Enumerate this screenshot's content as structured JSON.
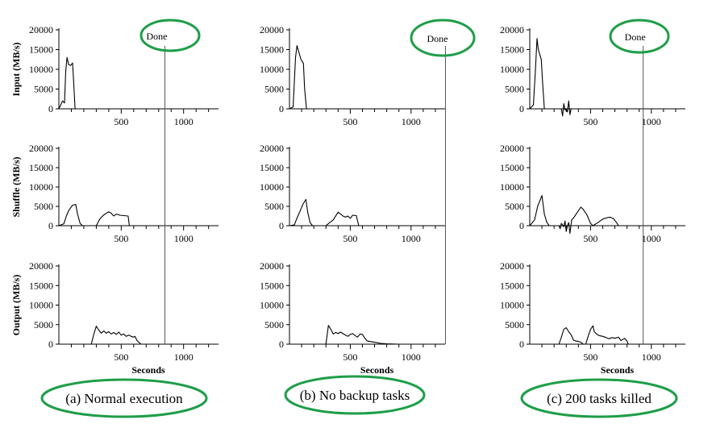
{
  "colors": {
    "highlight": "#1e9e48",
    "line": "#000000",
    "done_line": "#555555"
  },
  "y_ticks": [
    "0",
    "5000",
    "10000",
    "15000",
    "20000"
  ],
  "x_ticks": [
    "500",
    "1000"
  ],
  "row_labels": [
    "Input (MB/s)",
    "Shuffle (MB/s)",
    "Output (MB/s)"
  ],
  "xlabel": "Seconds",
  "done_label": "Done",
  "chart_data": [
    {
      "type": "line",
      "caption": "(a) Normal execution",
      "xlabel": "Seconds",
      "xlim": [
        0,
        1280
      ],
      "done_x": 850,
      "panels": [
        {
          "ylabel": "Input (MB/s)",
          "ylim": [
            0,
            20000
          ],
          "points": [
            [
              0,
              0
            ],
            [
              30,
              2000
            ],
            [
              45,
              1500
            ],
            [
              55,
              9500
            ],
            [
              65,
              13000
            ],
            [
              78,
              11200
            ],
            [
              95,
              11000
            ],
            [
              110,
              11600
            ],
            [
              118,
              7000
            ],
            [
              130,
              0
            ],
            [
              1280,
              0
            ]
          ]
        },
        {
          "ylabel": "Shuffle (MB/s)",
          "ylim": [
            0,
            20000
          ],
          "points": [
            [
              0,
              0
            ],
            [
              40,
              500
            ],
            [
              60,
              2500
            ],
            [
              80,
              4000
            ],
            [
              110,
              5300
            ],
            [
              135,
              5500
            ],
            [
              150,
              3000
            ],
            [
              170,
              600
            ],
            [
              190,
              0
            ],
            [
              300,
              0
            ],
            [
              330,
              1800
            ],
            [
              360,
              2800
            ],
            [
              400,
              3600
            ],
            [
              420,
              3200
            ],
            [
              440,
              2500
            ],
            [
              460,
              3000
            ],
            [
              490,
              2700
            ],
            [
              520,
              2600
            ],
            [
              555,
              2500
            ],
            [
              565,
              0
            ],
            [
              1280,
              0
            ]
          ]
        },
        {
          "ylabel": "Output (MB/s)",
          "ylim": [
            0,
            20000
          ],
          "points": [
            [
              0,
              0
            ],
            [
              260,
              0
            ],
            [
              280,
              2500
            ],
            [
              300,
              4600
            ],
            [
              320,
              3600
            ],
            [
              340,
              2800
            ],
            [
              360,
              3400
            ],
            [
              380,
              2800
            ],
            [
              400,
              3200
            ],
            [
              420,
              2600
            ],
            [
              440,
              3000
            ],
            [
              460,
              2500
            ],
            [
              480,
              3100
            ],
            [
              500,
              2300
            ],
            [
              520,
              2600
            ],
            [
              540,
              2000
            ],
            [
              560,
              2300
            ],
            [
              580,
              2000
            ],
            [
              600,
              1800
            ],
            [
              610,
              2000
            ],
            [
              625,
              1000
            ],
            [
              640,
              500
            ],
            [
              660,
              0
            ],
            [
              1280,
              0
            ]
          ]
        }
      ]
    },
    {
      "type": "line",
      "caption": "(b) No backup tasks",
      "xlabel": "Seconds",
      "xlim": [
        0,
        1280
      ],
      "done_x": 1283,
      "panels": [
        {
          "ylabel": "Input (MB/s)",
          "ylim": [
            0,
            20000
          ],
          "points": [
            [
              0,
              0
            ],
            [
              30,
              500
            ],
            [
              50,
              13000
            ],
            [
              62,
              16000
            ],
            [
              80,
              14000
            ],
            [
              95,
              12500
            ],
            [
              115,
              11500
            ],
            [
              125,
              5000
            ],
            [
              140,
              0
            ],
            [
              1280,
              0
            ]
          ]
        },
        {
          "ylabel": "Shuffle (MB/s)",
          "ylim": [
            0,
            20000
          ],
          "points": [
            [
              0,
              0
            ],
            [
              40,
              200
            ],
            [
              60,
              1800
            ],
            [
              90,
              4000
            ],
            [
              110,
              5500
            ],
            [
              135,
              6800
            ],
            [
              150,
              3500
            ],
            [
              170,
              800
            ],
            [
              190,
              0
            ],
            [
              300,
              0
            ],
            [
              330,
              800
            ],
            [
              360,
              1500
            ],
            [
              400,
              3500
            ],
            [
              420,
              3000
            ],
            [
              440,
              2500
            ],
            [
              460,
              2200
            ],
            [
              480,
              2500
            ],
            [
              500,
              1900
            ],
            [
              520,
              2700
            ],
            [
              550,
              2600
            ],
            [
              570,
              0
            ],
            [
              1280,
              0
            ]
          ]
        },
        {
          "ylabel": "Output (MB/s)",
          "ylim": [
            0,
            20000
          ],
          "points": [
            [
              0,
              0
            ],
            [
              300,
              0
            ],
            [
              320,
              4800
            ],
            [
              340,
              3800
            ],
            [
              360,
              2600
            ],
            [
              380,
              3000
            ],
            [
              400,
              2700
            ],
            [
              420,
              3100
            ],
            [
              450,
              2500
            ],
            [
              480,
              2000
            ],
            [
              500,
              2500
            ],
            [
              520,
              2700
            ],
            [
              540,
              2200
            ],
            [
              560,
              1800
            ],
            [
              580,
              2600
            ],
            [
              600,
              2500
            ],
            [
              620,
              1500
            ],
            [
              640,
              800
            ],
            [
              660,
              700
            ],
            [
              700,
              500
            ],
            [
              750,
              200
            ],
            [
              800,
              100
            ],
            [
              900,
              0
            ],
            [
              1280,
              0
            ]
          ]
        }
      ]
    },
    {
      "type": "line",
      "caption": "(c) 200 tasks killed",
      "xlabel": "Seconds",
      "xlim": [
        0,
        1280
      ],
      "done_x": 933,
      "panels": [
        {
          "ylabel": "Input (MB/s)",
          "ylim": [
            0,
            20000
          ],
          "points": [
            [
              0,
              0
            ],
            [
              30,
              1000
            ],
            [
              45,
              9000
            ],
            [
              60,
              17800
            ],
            [
              70,
              15000
            ],
            [
              85,
              13500
            ],
            [
              95,
              12500
            ],
            [
              105,
              7000
            ],
            [
              120,
              0
            ],
            [
              260,
              0
            ],
            [
              270,
              -1800
            ],
            [
              280,
              1300
            ],
            [
              290,
              -300
            ],
            [
              300,
              0
            ],
            [
              310,
              -800
            ],
            [
              320,
              2000
            ],
            [
              330,
              -1500
            ],
            [
              340,
              0
            ],
            [
              1280,
              0
            ]
          ]
        },
        {
          "ylabel": "Shuffle (MB/s)",
          "ylim": [
            0,
            20000
          ],
          "points": [
            [
              0,
              0
            ],
            [
              40,
              1500
            ],
            [
              65,
              5000
            ],
            [
              100,
              7800
            ],
            [
              120,
              3000
            ],
            [
              140,
              900
            ],
            [
              160,
              0
            ],
            [
              240,
              0
            ],
            [
              250,
              -800
            ],
            [
              260,
              600
            ],
            [
              280,
              -300
            ],
            [
              290,
              1200
            ],
            [
              300,
              -1500
            ],
            [
              310,
              0
            ],
            [
              320,
              800
            ],
            [
              330,
              -2000
            ],
            [
              345,
              1500
            ],
            [
              360,
              2000
            ],
            [
              390,
              3400
            ],
            [
              420,
              4800
            ],
            [
              440,
              4200
            ],
            [
              470,
              2800
            ],
            [
              500,
              600
            ],
            [
              520,
              0
            ],
            [
              560,
              800
            ],
            [
              600,
              1700
            ],
            [
              640,
              2100
            ],
            [
              660,
              2200
            ],
            [
              690,
              1800
            ],
            [
              720,
              500
            ],
            [
              730,
              0
            ],
            [
              1280,
              0
            ]
          ]
        },
        {
          "ylabel": "Output (MB/s)",
          "ylim": [
            0,
            20000
          ],
          "points": [
            [
              0,
              0
            ],
            [
              240,
              0
            ],
            [
              260,
              1800
            ],
            [
              280,
              3800
            ],
            [
              300,
              4200
            ],
            [
              320,
              3200
            ],
            [
              340,
              2400
            ],
            [
              360,
              1000
            ],
            [
              380,
              800
            ],
            [
              400,
              700
            ],
            [
              420,
              500
            ],
            [
              440,
              0
            ],
            [
              460,
              0
            ],
            [
              480,
              2000
            ],
            [
              500,
              3800
            ],
            [
              520,
              4700
            ],
            [
              530,
              3200
            ],
            [
              550,
              2600
            ],
            [
              570,
              2200
            ],
            [
              600,
              2000
            ],
            [
              620,
              1800
            ],
            [
              650,
              1400
            ],
            [
              680,
              1700
            ],
            [
              700,
              1500
            ],
            [
              730,
              1800
            ],
            [
              750,
              900
            ],
            [
              780,
              1500
            ],
            [
              800,
              800
            ],
            [
              810,
              0
            ],
            [
              1280,
              0
            ]
          ]
        }
      ]
    }
  ]
}
